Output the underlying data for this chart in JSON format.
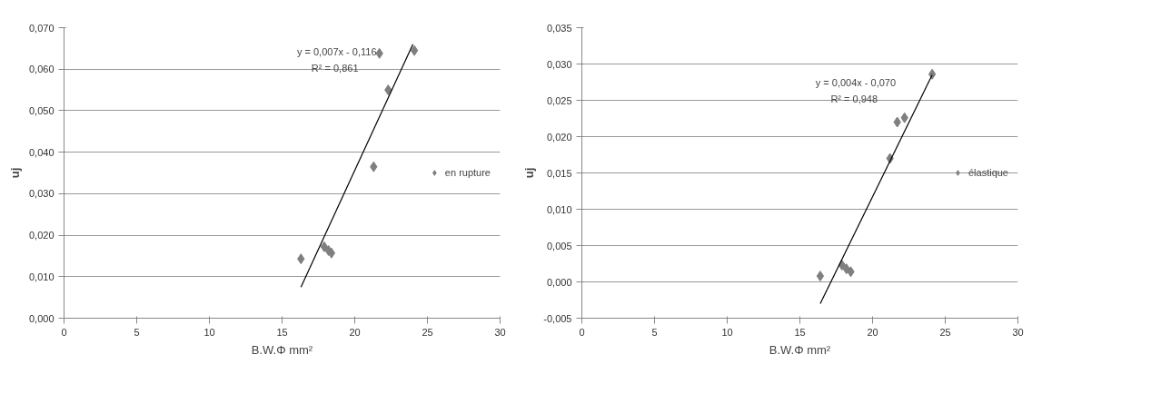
{
  "chart_data": [
    {
      "type": "scatter",
      "xlabel": "B.W.Φ mm²",
      "ylabel": "uj",
      "grid": "y",
      "legend": "right",
      "xlim": [
        0,
        30
      ],
      "xticks": [
        0,
        5,
        10,
        15,
        20,
        25,
        30
      ],
      "ylim": [
        0,
        0.07
      ],
      "yticks": [
        {
          "value": 0,
          "label": "0,000"
        },
        {
          "value": 0.01,
          "label": "0,010"
        },
        {
          "value": 0.02,
          "label": "0,020"
        },
        {
          "value": 0.03,
          "label": "0,030"
        },
        {
          "value": 0.04,
          "label": "0,040"
        },
        {
          "value": 0.05,
          "label": "0,050"
        },
        {
          "value": 0.06,
          "label": "0,060"
        },
        {
          "value": 0.07,
          "label": "0,070"
        }
      ],
      "annotations": [
        "y = 0,007x - 0,116",
        "R² = 0,861"
      ],
      "series": [
        {
          "name": "en rupture",
          "color": "#7f7f7f",
          "marker": "diamond",
          "x": [
            16.3,
            17.9,
            18.2,
            18.4,
            21.3,
            21.7,
            22.3,
            24.1
          ],
          "values": [
            0.0143,
            0.0172,
            0.0163,
            0.0157,
            0.0365,
            0.0638,
            0.055,
            0.0645
          ]
        },
        {
          "type": "line",
          "color": "#000000",
          "x": [
            16.3,
            24.0
          ],
          "values": [
            0.0075,
            0.066
          ]
        }
      ]
    },
    {
      "type": "scatter",
      "xlabel": "B.W.Φ mm²",
      "ylabel": "uj",
      "grid": "y",
      "legend": "right",
      "xlim": [
        0,
        30
      ],
      "xticks": [
        0,
        5,
        10,
        15,
        20,
        25,
        30
      ],
      "ylim": [
        -0.005,
        0.035
      ],
      "yticks": [
        {
          "value": -0.005,
          "label": "-0,005"
        },
        {
          "value": 0,
          "label": "0,000"
        },
        {
          "value": 0.005,
          "label": "0,005"
        },
        {
          "value": 0.01,
          "label": "0,010"
        },
        {
          "value": 0.015,
          "label": "0,015"
        },
        {
          "value": 0.02,
          "label": "0,020"
        },
        {
          "value": 0.025,
          "label": "0,025"
        },
        {
          "value": 0.03,
          "label": "0,030"
        },
        {
          "value": 0.035,
          "label": "0,035"
        }
      ],
      "annotations": [
        "y = 0,004x - 0,070",
        "R² = 0,948"
      ],
      "series": [
        {
          "name": "élastique",
          "color": "#7f7f7f",
          "marker": "diamond",
          "x": [
            16.4,
            17.9,
            18.2,
            18.5,
            21.2,
            21.7,
            22.2,
            24.1
          ],
          "values": [
            0.0008,
            0.0023,
            0.0018,
            0.0014,
            0.017,
            0.022,
            0.0226,
            0.0286
          ]
        },
        {
          "type": "line",
          "color": "#000000",
          "x": [
            16.4,
            24.1
          ],
          "values": [
            -0.003,
            0.0285
          ]
        }
      ]
    }
  ]
}
